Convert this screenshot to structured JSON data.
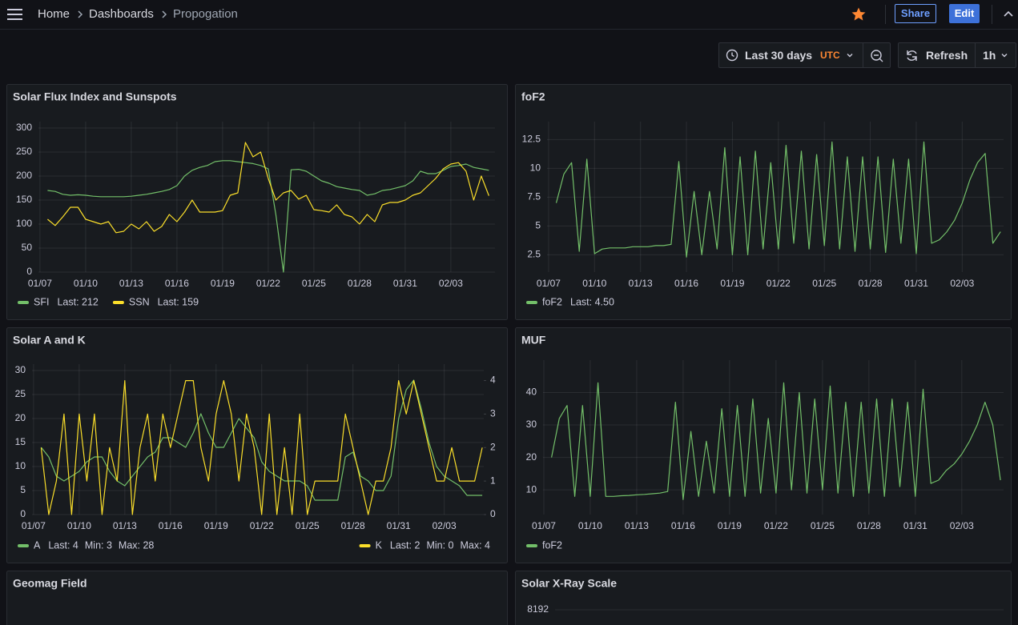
{
  "header": {
    "breadcrumbs": [
      "Home",
      "Dashboards",
      "Propogation"
    ],
    "share": "Share",
    "edit": "Edit"
  },
  "toolbar": {
    "time_range": "Last 30 days",
    "timezone": "UTC",
    "refresh": "Refresh",
    "interval": "1h"
  },
  "chart_data": [
    {
      "type": "line",
      "title": "Solar Flux Index and Sunspots",
      "x": [
        7.5,
        8,
        8.5,
        9,
        9.5,
        10,
        10.5,
        11,
        11.5,
        12,
        12.5,
        13,
        13.5,
        14,
        14.5,
        15,
        15.5,
        16,
        16.5,
        17,
        17.5,
        18,
        18.5,
        19,
        19.5,
        20,
        20.5,
        21,
        21.5,
        22,
        22.5,
        23,
        23.5,
        24,
        24.5,
        25,
        25.5,
        26,
        26.5,
        27,
        27.5,
        28,
        28.5,
        29,
        29.5,
        30,
        30.5,
        31,
        31.5,
        32,
        32.5,
        33,
        33.5,
        34,
        34.5,
        35,
        35.5,
        36,
        36.5
      ],
      "xlim": [
        6.9,
        36.9
      ],
      "xticks": [
        {
          "value": 7,
          "label": "01/07"
        },
        {
          "value": 10,
          "label": "01/10"
        },
        {
          "value": 13,
          "label": "01/13"
        },
        {
          "value": 16,
          "label": "01/16"
        },
        {
          "value": 19,
          "label": "01/19"
        },
        {
          "value": 22,
          "label": "01/22"
        },
        {
          "value": 25,
          "label": "01/25"
        },
        {
          "value": 28,
          "label": "01/28"
        },
        {
          "value": 31,
          "label": "01/31"
        },
        {
          "value": 34,
          "label": "02/03"
        }
      ],
      "ylim": [
        0,
        300
      ],
      "yticks": [
        0,
        50,
        100,
        150,
        200,
        250,
        300
      ],
      "grid": true,
      "series": [
        {
          "name": "SFI",
          "color": "#73bf69",
          "legend_stats": [
            "Last: 212"
          ],
          "values": [
            170,
            168,
            162,
            160,
            161,
            160,
            158,
            157,
            157,
            157,
            157,
            158,
            160,
            162,
            165,
            168,
            172,
            180,
            200,
            212,
            218,
            222,
            230,
            232,
            232,
            230,
            228,
            226,
            222,
            215,
            120,
            0,
            213,
            214,
            210,
            200,
            190,
            185,
            178,
            175,
            172,
            170,
            160,
            163,
            170,
            172,
            176,
            180,
            190,
            210,
            205,
            205,
            212,
            220,
            222,
            225,
            218,
            215,
            212
          ]
        },
        {
          "name": "SSN",
          "color": "#fade2a",
          "legend_stats": [
            "Last: 159"
          ],
          "values": [
            110,
            97,
            115,
            135,
            135,
            110,
            105,
            100,
            105,
            82,
            85,
            100,
            90,
            105,
            85,
            95,
            120,
            105,
            125,
            150,
            125,
            125,
            125,
            128,
            160,
            165,
            270,
            240,
            250,
            195,
            150,
            165,
            170,
            152,
            160,
            130,
            128,
            125,
            140,
            120,
            115,
            100,
            120,
            105,
            140,
            145,
            145,
            150,
            160,
            165,
            180,
            195,
            215,
            225,
            228,
            210,
            150,
            200,
            159
          ]
        }
      ]
    },
    {
      "type": "line",
      "title": "foF2",
      "x": [
        7.5,
        8,
        8.5,
        9,
        9.5,
        10,
        10.5,
        11,
        11.5,
        12,
        12.5,
        13,
        13.5,
        14,
        14.5,
        15,
        15.5,
        16,
        16.5,
        17,
        17.5,
        18,
        18.5,
        19,
        19.5,
        20,
        20.5,
        21,
        21.5,
        22,
        22.5,
        23,
        23.5,
        24,
        24.5,
        25,
        25.5,
        26,
        26.5,
        27,
        27.5,
        28,
        28.5,
        29,
        29.5,
        30,
        30.5,
        31,
        31.5,
        32,
        32.5,
        33,
        33.5,
        34,
        34.5,
        35,
        35.5,
        36,
        36.5
      ],
      "xlim": [
        6.9,
        36.7
      ],
      "xticks": [
        {
          "value": 7,
          "label": "01/07"
        },
        {
          "value": 10,
          "label": "01/10"
        },
        {
          "value": 13,
          "label": "01/13"
        },
        {
          "value": 16,
          "label": "01/16"
        },
        {
          "value": 19,
          "label": "01/19"
        },
        {
          "value": 22,
          "label": "01/22"
        },
        {
          "value": 25,
          "label": "01/25"
        },
        {
          "value": 28,
          "label": "01/28"
        },
        {
          "value": 31,
          "label": "01/31"
        },
        {
          "value": 34,
          "label": "02/03"
        }
      ],
      "ylim": [
        1,
        13.5
      ],
      "yticks": [
        2.5,
        5,
        7.5,
        10,
        12.5
      ],
      "grid": true,
      "series": [
        {
          "name": "foF2",
          "color": "#73bf69",
          "legend_stats": [
            "Last: 4.50"
          ],
          "values": [
            7,
            9.5,
            10.5,
            2.8,
            10.8,
            2.6,
            3,
            3.1,
            3.1,
            3.1,
            3.2,
            3.2,
            3.2,
            3.3,
            3.3,
            3.4,
            10.6,
            2.3,
            8,
            2.5,
            8,
            3,
            11.8,
            2.5,
            11,
            2.5,
            11.5,
            3,
            10.5,
            3,
            12,
            3.5,
            11.5,
            3,
            11.2,
            3.3,
            12.3,
            3,
            11,
            2.8,
            11,
            3,
            11,
            2.7,
            10.8,
            3.5,
            10.8,
            2.6,
            12.3,
            3.5,
            3.8,
            4.5,
            5.5,
            7,
            9,
            10.5,
            11.3,
            3.5,
            4.5
          ]
        }
      ]
    },
    {
      "type": "line",
      "title": "Solar A and K",
      "x": [
        7.5,
        8,
        8.5,
        9,
        9.5,
        10,
        10.5,
        11,
        11.5,
        12,
        12.5,
        13,
        13.5,
        14,
        14.5,
        15,
        15.5,
        16,
        16.5,
        17,
        17.5,
        18,
        18.5,
        19,
        19.5,
        20,
        20.5,
        21,
        21.5,
        22,
        22.5,
        23,
        23.5,
        24,
        24.5,
        25,
        25.5,
        26,
        26.5,
        27,
        27.5,
        28,
        28.5,
        29,
        29.5,
        30,
        30.5,
        31,
        31.5,
        32,
        32.5,
        33,
        33.5,
        34,
        34.5,
        35,
        35.5,
        36,
        36.5
      ],
      "xlim": [
        6.9,
        36.6
      ],
      "xticks": [
        {
          "value": 7,
          "label": "01/07"
        },
        {
          "value": 10,
          "label": "01/10"
        },
        {
          "value": 13,
          "label": "01/13"
        },
        {
          "value": 16,
          "label": "01/16"
        },
        {
          "value": 19,
          "label": "01/19"
        },
        {
          "value": 22,
          "label": "01/22"
        },
        {
          "value": 25,
          "label": "01/25"
        },
        {
          "value": 28,
          "label": "01/28"
        },
        {
          "value": 31,
          "label": "01/31"
        },
        {
          "value": 34,
          "label": "02/03"
        }
      ],
      "ylim": [
        0,
        30
      ],
      "yticks": [
        0,
        5,
        10,
        15,
        20,
        25,
        30
      ],
      "y2lim": [
        0,
        4.3
      ],
      "y2ticks": [
        0,
        1,
        2,
        3,
        4
      ],
      "grid": true,
      "series": [
        {
          "name": "A",
          "color": "#73bf69",
          "legend_stats": [
            "Last: 4",
            "Min: 3",
            "Max: 28"
          ],
          "values": [
            14,
            12,
            8,
            7,
            8,
            9,
            11,
            12,
            12,
            9,
            7,
            6,
            8,
            10,
            12,
            13,
            16,
            16,
            15,
            14,
            17,
            21,
            17,
            14,
            14,
            17,
            20,
            18,
            16,
            11,
            9,
            8,
            7,
            7,
            7,
            6,
            3,
            3,
            3,
            3,
            12,
            13,
            8,
            7,
            5,
            5,
            8,
            20,
            26,
            28,
            22,
            15,
            10,
            8,
            7,
            6,
            4,
            4,
            4
          ]
        },
        {
          "name": "K",
          "color": "#fade2a",
          "axis": "y2",
          "legend_stats": [
            "Last: 2",
            "Min: 0",
            "Max: 4"
          ],
          "values": [
            2,
            0,
            1,
            3,
            0,
            3,
            1,
            3,
            0,
            2,
            1,
            4,
            0,
            2,
            3,
            1,
            3,
            2,
            3,
            4,
            4,
            2,
            1,
            3,
            4,
            3,
            1,
            3,
            2,
            0,
            3,
            0,
            2,
            0,
            3,
            0,
            1,
            1,
            1,
            1,
            3,
            2,
            1,
            0,
            1,
            1,
            2,
            4,
            3,
            4,
            3,
            2,
            1,
            1,
            2,
            1,
            1,
            1,
            2
          ]
        }
      ]
    },
    {
      "type": "line",
      "title": "MUF",
      "x": [
        7.5,
        8,
        8.5,
        9,
        9.5,
        10,
        10.5,
        11,
        11.5,
        12,
        12.5,
        13,
        13.5,
        14,
        14.5,
        15,
        15.5,
        16,
        16.5,
        17,
        17.5,
        18,
        18.5,
        19,
        19.5,
        20,
        20.5,
        21,
        21.5,
        22,
        22.5,
        23,
        23.5,
        24,
        24.5,
        25,
        25.5,
        26,
        26.5,
        27,
        27.5,
        28,
        28.5,
        29,
        29.5,
        30,
        30.5,
        31,
        31.5,
        32,
        32.5,
        33,
        33.5,
        34,
        34.5,
        35,
        35.5,
        36,
        36.5
      ],
      "xlim": [
        6.95,
        36.7
      ],
      "xticks": [
        {
          "value": 7,
          "label": "01/07"
        },
        {
          "value": 10,
          "label": "01/10"
        },
        {
          "value": 13,
          "label": "01/13"
        },
        {
          "value": 16,
          "label": "01/16"
        },
        {
          "value": 19,
          "label": "01/19"
        },
        {
          "value": 22,
          "label": "01/22"
        },
        {
          "value": 25,
          "label": "01/25"
        },
        {
          "value": 28,
          "label": "01/28"
        },
        {
          "value": 31,
          "label": "01/31"
        },
        {
          "value": 34,
          "label": "02/03"
        }
      ],
      "ylim": [
        2.4,
        48
      ],
      "yticks": [
        10,
        20,
        30,
        40
      ],
      "grid": true,
      "series": [
        {
          "name": "foF2",
          "color": "#73bf69",
          "values": [
            20,
            32,
            36,
            8,
            36,
            8,
            43,
            8,
            8,
            8.2,
            8.3,
            8.5,
            8.6,
            8.8,
            9,
            9.5,
            37,
            7,
            28,
            8,
            25,
            9,
            35,
            8,
            36,
            8,
            38,
            9,
            32,
            9,
            43,
            10,
            40,
            9,
            38,
            10,
            42,
            9,
            37,
            8,
            37,
            9,
            38,
            8,
            38,
            11,
            37,
            8,
            41,
            12,
            13,
            16,
            18,
            21,
            25,
            30,
            37,
            30,
            13
          ]
        }
      ]
    },
    {
      "type": "line",
      "title": "Geomag Field"
    },
    {
      "type": "line",
      "title": "Solar X-Ray Scale",
      "yticks": [
        8192
      ]
    }
  ]
}
